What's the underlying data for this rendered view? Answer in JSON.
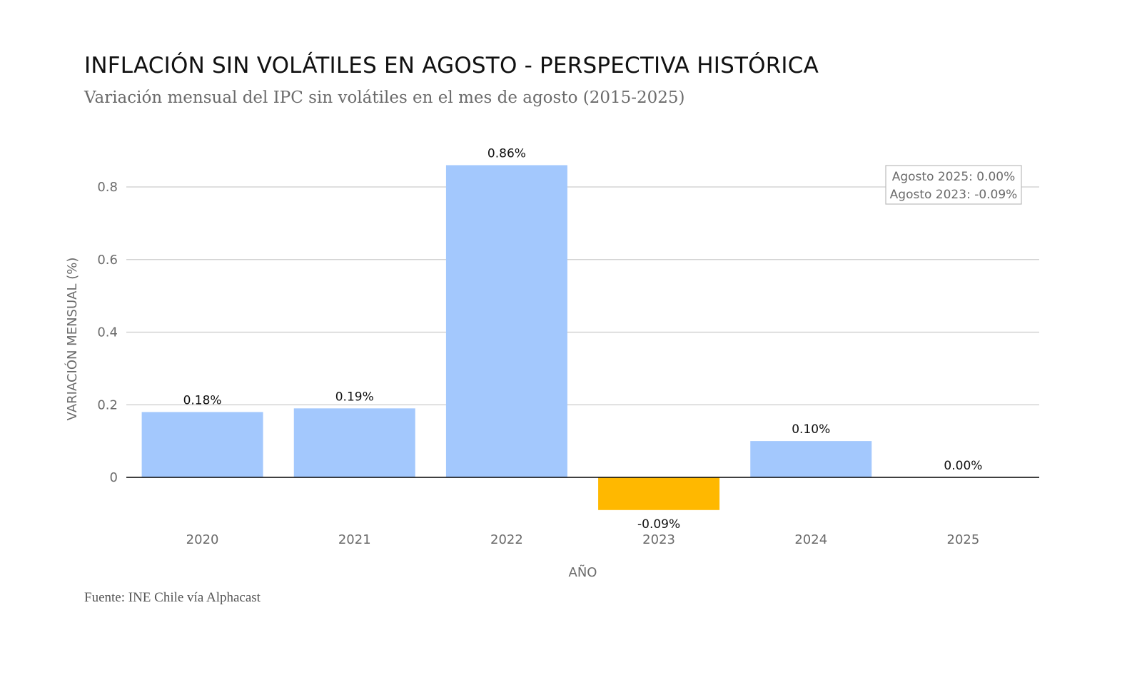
{
  "title": "INFLACIÓN SIN VOLÁTILES EN AGOSTO - PERSPECTIVA HISTÓRICA",
  "subtitle": "Variación mensual del IPC sin volátiles en el mes de agosto (2015-2025)",
  "source": "Fuente: INE Chile vía Alphacast",
  "chart_data": {
    "type": "bar",
    "title": "INFLACIÓN SIN VOLÁTILES EN AGOSTO - PERSPECTIVA HISTÓRICA",
    "subtitle": "Variación mensual del IPC sin volátiles en el mes de agosto (2015-2025)",
    "xlabel": "AÑO",
    "ylabel": "VARIACIÓN MENSUAL (%)",
    "categories": [
      "2020",
      "2021",
      "2022",
      "2023",
      "2024",
      "2025"
    ],
    "values": [
      0.18,
      0.19,
      0.86,
      -0.09,
      0.1,
      0.0
    ],
    "data_labels": [
      "0.18%",
      "0.19%",
      "0.86%",
      "-0.09%",
      "0.10%",
      "0.00%"
    ],
    "bar_colors": [
      "#a3c8fd",
      "#a3c8fd",
      "#a3c8fd",
      "#ffb800",
      "#a3c8fd",
      "#a3c8fd"
    ],
    "ylim": [
      -0.13,
      0.96
    ],
    "yticks": [
      0,
      0.2,
      0.4,
      0.6,
      0.8
    ],
    "ytick_labels": [
      "0",
      "0.2",
      "0.4",
      "0.6",
      "0.8"
    ],
    "grid": true,
    "legend": false,
    "annotation": {
      "position": "top-right",
      "lines": [
        "Agosto 2025: 0.00%",
        "Agosto 2023: -0.09%"
      ]
    },
    "colors": {
      "positive": "#a3c8fd",
      "highlight_negative": "#ffb800",
      "grid": "#cccccc",
      "zero_line": "#000000"
    }
  }
}
